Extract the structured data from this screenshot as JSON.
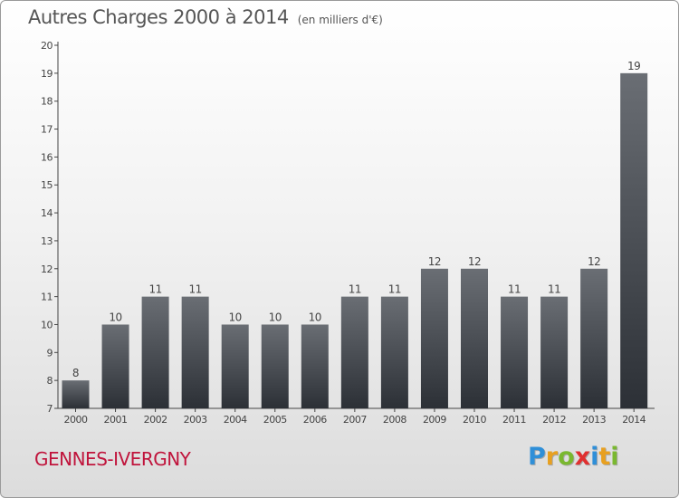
{
  "title": {
    "main": "Autres Charges 2000 à 2014",
    "unit": "(en milliers d'€)"
  },
  "location": "GENNES-IVERGNY",
  "logo": {
    "text": "Proxiti",
    "letters": [
      {
        "ch": "P",
        "color": "#2f8fd8"
      },
      {
        "ch": "r",
        "color": "#e8a020"
      },
      {
        "ch": "o",
        "color": "#7ab830"
      },
      {
        "ch": "x",
        "color": "#e03030"
      },
      {
        "ch": "i",
        "color": "#2f8fd8"
      },
      {
        "ch": "t",
        "color": "#e8a020"
      },
      {
        "ch": "i",
        "color": "#7ab830"
      }
    ]
  },
  "chart_data": {
    "type": "bar",
    "title": "Autres Charges 2000 à 2014",
    "subtitle": "(en milliers d'€)",
    "categories": [
      "2000",
      "2001",
      "2002",
      "2003",
      "2004",
      "2005",
      "2006",
      "2007",
      "2008",
      "2009",
      "2010",
      "2011",
      "2012",
      "2013",
      "2014"
    ],
    "values": [
      8,
      10,
      11,
      11,
      10,
      10,
      10,
      11,
      11,
      12,
      12,
      11,
      11,
      12,
      19
    ],
    "ylim": [
      7,
      20
    ],
    "yticks": [
      7,
      8,
      9,
      10,
      11,
      12,
      13,
      14,
      15,
      16,
      17,
      18,
      19,
      20
    ],
    "xlabel": "",
    "ylabel": "",
    "grid": false,
    "legend": "none",
    "colors": {
      "bar_top": "#6a6e74",
      "bar_bottom": "#2c3036",
      "axis": "#444444",
      "text": "#444444"
    }
  }
}
